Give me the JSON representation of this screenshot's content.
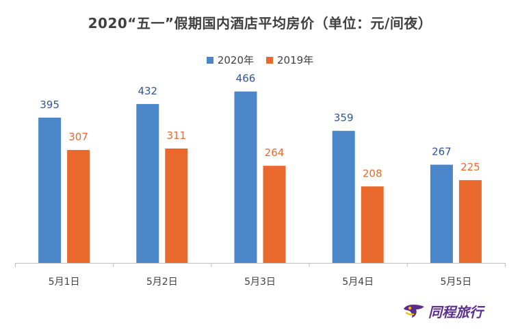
{
  "chart_data": {
    "type": "bar",
    "title": "2020“五一”假期国内酒店平均房价（单位：元/间夜）",
    "categories": [
      "5月1日",
      "5月2日",
      "5月3日",
      "5月4日",
      "5月5日"
    ],
    "series": [
      {
        "name": "2020年",
        "color": "#4A86C8",
        "values": [
          395,
          432,
          466,
          359,
          267
        ]
      },
      {
        "name": "2019年",
        "color": "#E8692B",
        "values": [
          307,
          311,
          264,
          208,
          225
        ]
      }
    ],
    "ylim": [
      0,
      510
    ],
    "grid": false,
    "legend_position": "top-center",
    "data_labels": true
  },
  "brand": {
    "name": "同程旅行",
    "icon": "tongcheng-logo-icon",
    "color": "#5b2d8e"
  }
}
